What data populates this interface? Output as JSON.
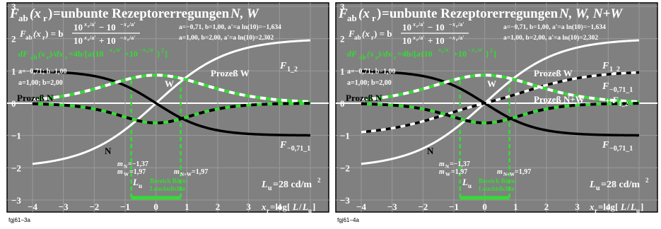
{
  "chart_data": [
    {
      "type": "line",
      "title": {
        "fab": "F",
        "fab_sub": "ab",
        "xr": "(x",
        "xr_sub": "r",
        "close": ")",
        "eq": "=unbunte Rezeptorerregungen ",
        "vars": "N, W"
      },
      "formula_main": {
        "lhs": "F",
        "lhs_sub": "ab",
        "lhs_arg": "(x",
        "lhs_arg_sub": "r",
        "lhs_close": ") = b",
        "numerator": "10^(xr/a') − 10^(−xr/a')",
        "denominator": "10^(xr/a') + 10^(−xr/a')"
      },
      "formula_deriv": "dFab(xr)/dxr=4b/[a{10^(xr/a')+10^(−xr/a')}²]",
      "params_line1": "a=−0,71, b=1,00, a'=a ln(10)=−1,634",
      "params_line2": "a=1,00, b=2,00, a'=a ln(10)=2,302",
      "legend_a1": "a=−0,71; b=1,00",
      "legend_a2": "a=1,00; b=2,00",
      "labels": {
        "process_n": "Prozeß N",
        "process_w": "Prozeß W",
        "n": "N",
        "w": "W",
        "f12": "F1_2",
        "f071": "F−0,71_1"
      },
      "m_values": {
        "m_n": "mN=−1,37",
        "m_w": "mW=1,97",
        "m_nw": "mN+W=1,97"
      },
      "lu_label": "Lu",
      "area_label_1": "Bereich Büro-",
      "area_label_2": "Leuchtdichte",
      "lu_value": "Lu=28 cd/m²",
      "x_axis_label": "xr=log[L/Lu]",
      "xlim": [
        -4,
        5
      ],
      "ylim": [
        -3,
        3
      ],
      "x_ticks": [
        "−4",
        "−3",
        "−2",
        "−1",
        "0",
        "1",
        "2",
        "3",
        "4"
      ],
      "y_ticks": [
        "3",
        "2",
        "1",
        "0",
        "−1",
        "−2",
        "−3"
      ],
      "series": [
        {
          "name": "Prozeß N",
          "formula": "F(x)=1·tanh(x/(−0,71·ln10))",
          "a": -0.71,
          "b": 1.0
        },
        {
          "name": "Prozeß W",
          "formula": "F(x)=2·tanh(x/(1,00·ln10))",
          "a": 1.0,
          "b": 2.0
        }
      ],
      "footer": "fgj61−3a"
    },
    {
      "type": "line",
      "title": {
        "fab": "F",
        "fab_sub": "ab",
        "xr": "(x",
        "xr_sub": "r",
        "close": ")",
        "eq": "=unbunte Rezeptorerregungen ",
        "vars": "N, W, N+W"
      },
      "formula_main": {
        "lhs": "F",
        "lhs_sub": "ab",
        "lhs_arg": "(x",
        "lhs_arg_sub": "r",
        "lhs_close": ") = b",
        "numerator": "10^(xr/a') − 10^(−xr/a')",
        "denominator": "10^(xr/a') + 10^(−xr/a')"
      },
      "formula_deriv": "dFab(xr)/dxr=4b/[a{10^(xr/a')+10^(−xr/a')}²]",
      "params_line1": "a=−0,71, b=1,00, a'=a ln(10)=−1,634",
      "params_line2": "a=1,00, b=2,00, a'=a ln(10)=2,302",
      "legend_a1": "a=−0,71; b=1,00",
      "legend_a2": "a=1,00; b=2,00",
      "labels": {
        "process_n": "Prozeß N",
        "process_w": "Prozeß W",
        "process_nw": "Prozeß N+W",
        "n": "N",
        "w": "W",
        "f12": "F1_2",
        "f071": "F−0,71_1",
        "f071_plus": "F−0,71_1 + F1_2"
      },
      "m_values": {
        "m_n": "mN=−1,37",
        "m_w": "mW=1,97",
        "m_nw": "mN+W=1,97"
      },
      "lu_label": "Lu",
      "area_label_1": "Bereich Büro-",
      "area_label_2": "Leuchtdichte",
      "lu_value": "Lu=28 cd/m²",
      "x_axis_label": "xr=log[L/Lu]",
      "xlim": [
        -4,
        5
      ],
      "ylim": [
        -3,
        3
      ],
      "x_ticks": [
        "−4",
        "−3",
        "−2",
        "−1",
        "0",
        "1",
        "2",
        "3",
        "4"
      ],
      "y_ticks": [
        "3",
        "2",
        "1",
        "0",
        "−1",
        "−2",
        "−3"
      ],
      "series": [
        {
          "name": "Prozeß N",
          "a": -0.71,
          "b": 1.0
        },
        {
          "name": "Prozeß W",
          "a": 1.0,
          "b": 2.0
        },
        {
          "name": "Prozeß N+W",
          "formula": "sum of N and W"
        }
      ],
      "footer": "fgj61−4a"
    }
  ]
}
